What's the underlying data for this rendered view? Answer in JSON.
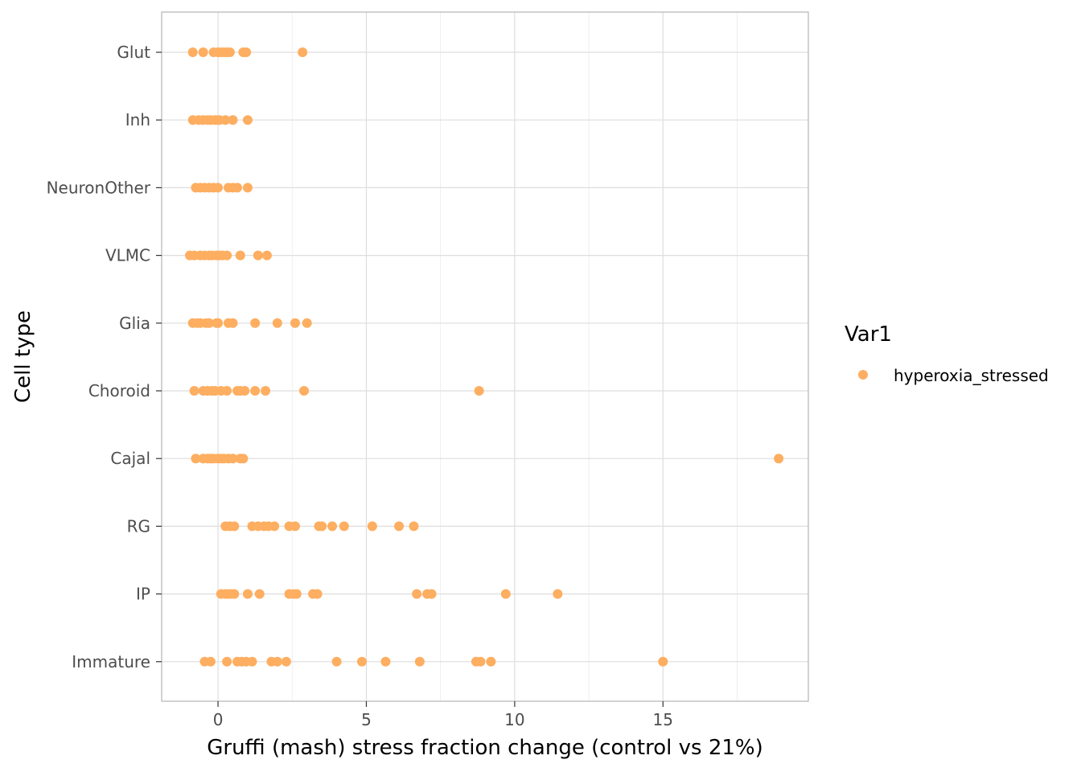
{
  "chart_data": {
    "type": "scatter",
    "xlabel": "Gruffi (mash) stress fraction change (control vs 21%)",
    "ylabel": "Cell type",
    "xlim": [
      -1.9,
      19.9
    ],
    "x_ticks": [
      0,
      5,
      10,
      15
    ],
    "x_minor_ticks": [
      -2.5,
      2.5,
      7.5,
      12.5,
      17.5
    ],
    "categories": [
      "Glut",
      "Inh",
      "NeuronOther",
      "VLMC",
      "Glia",
      "Choroid",
      "Cajal",
      "RG",
      "IP",
      "Immature"
    ],
    "grid": true,
    "legend": {
      "title": "Var1",
      "placement": "right"
    },
    "series": [
      {
        "name": "hyperoxia_stressed",
        "color": "#fdae61",
        "points": {
          "Glut": [
            -0.85,
            -0.5,
            -0.15,
            0.0,
            0.1,
            0.2,
            0.3,
            0.4,
            0.85,
            0.95,
            2.85
          ],
          "Inh": [
            -0.85,
            -0.65,
            -0.5,
            -0.35,
            -0.25,
            -0.1,
            0.0,
            0.05,
            0.25,
            0.5,
            1.0
          ],
          "NeuronOther": [
            -0.75,
            -0.6,
            -0.45,
            -0.3,
            -0.15,
            0.0,
            0.35,
            0.5,
            0.65,
            1.0
          ],
          "VLMC": [
            -0.95,
            -0.8,
            -0.6,
            -0.45,
            -0.3,
            -0.2,
            -0.05,
            0.05,
            0.15,
            0.3,
            0.75,
            1.35,
            1.65
          ],
          "Glia": [
            -0.85,
            -0.7,
            -0.6,
            -0.4,
            -0.3,
            -0.05,
            0.0,
            0.35,
            0.5,
            1.25,
            2.0,
            2.6,
            3.0
          ],
          "Choroid": [
            -0.8,
            -0.5,
            -0.35,
            -0.2,
            -0.1,
            0.1,
            0.3,
            0.65,
            0.75,
            0.9,
            1.25,
            1.6,
            2.9,
            8.8
          ],
          "Cajal": [
            -0.75,
            -0.5,
            -0.35,
            -0.25,
            -0.15,
            0.0,
            0.1,
            0.2,
            0.35,
            0.5,
            0.75,
            0.85,
            18.9
          ],
          "RG": [
            0.25,
            0.4,
            0.55,
            1.15,
            1.35,
            1.55,
            1.7,
            1.9,
            2.4,
            2.6,
            3.4,
            3.5,
            3.85,
            4.25,
            5.2,
            6.1,
            6.6
          ],
          "IP": [
            0.1,
            0.25,
            0.35,
            0.45,
            0.55,
            1.0,
            1.4,
            2.4,
            2.55,
            2.65,
            3.2,
            3.35,
            6.7,
            7.05,
            7.2,
            9.7,
            11.45
          ],
          "Immature": [
            -0.45,
            -0.25,
            0.3,
            0.65,
            0.8,
            0.95,
            1.15,
            1.8,
            2.0,
            2.3,
            4.0,
            4.85,
            5.65,
            6.8,
            8.7,
            8.85,
            9.2,
            15.0
          ]
        }
      }
    ]
  }
}
